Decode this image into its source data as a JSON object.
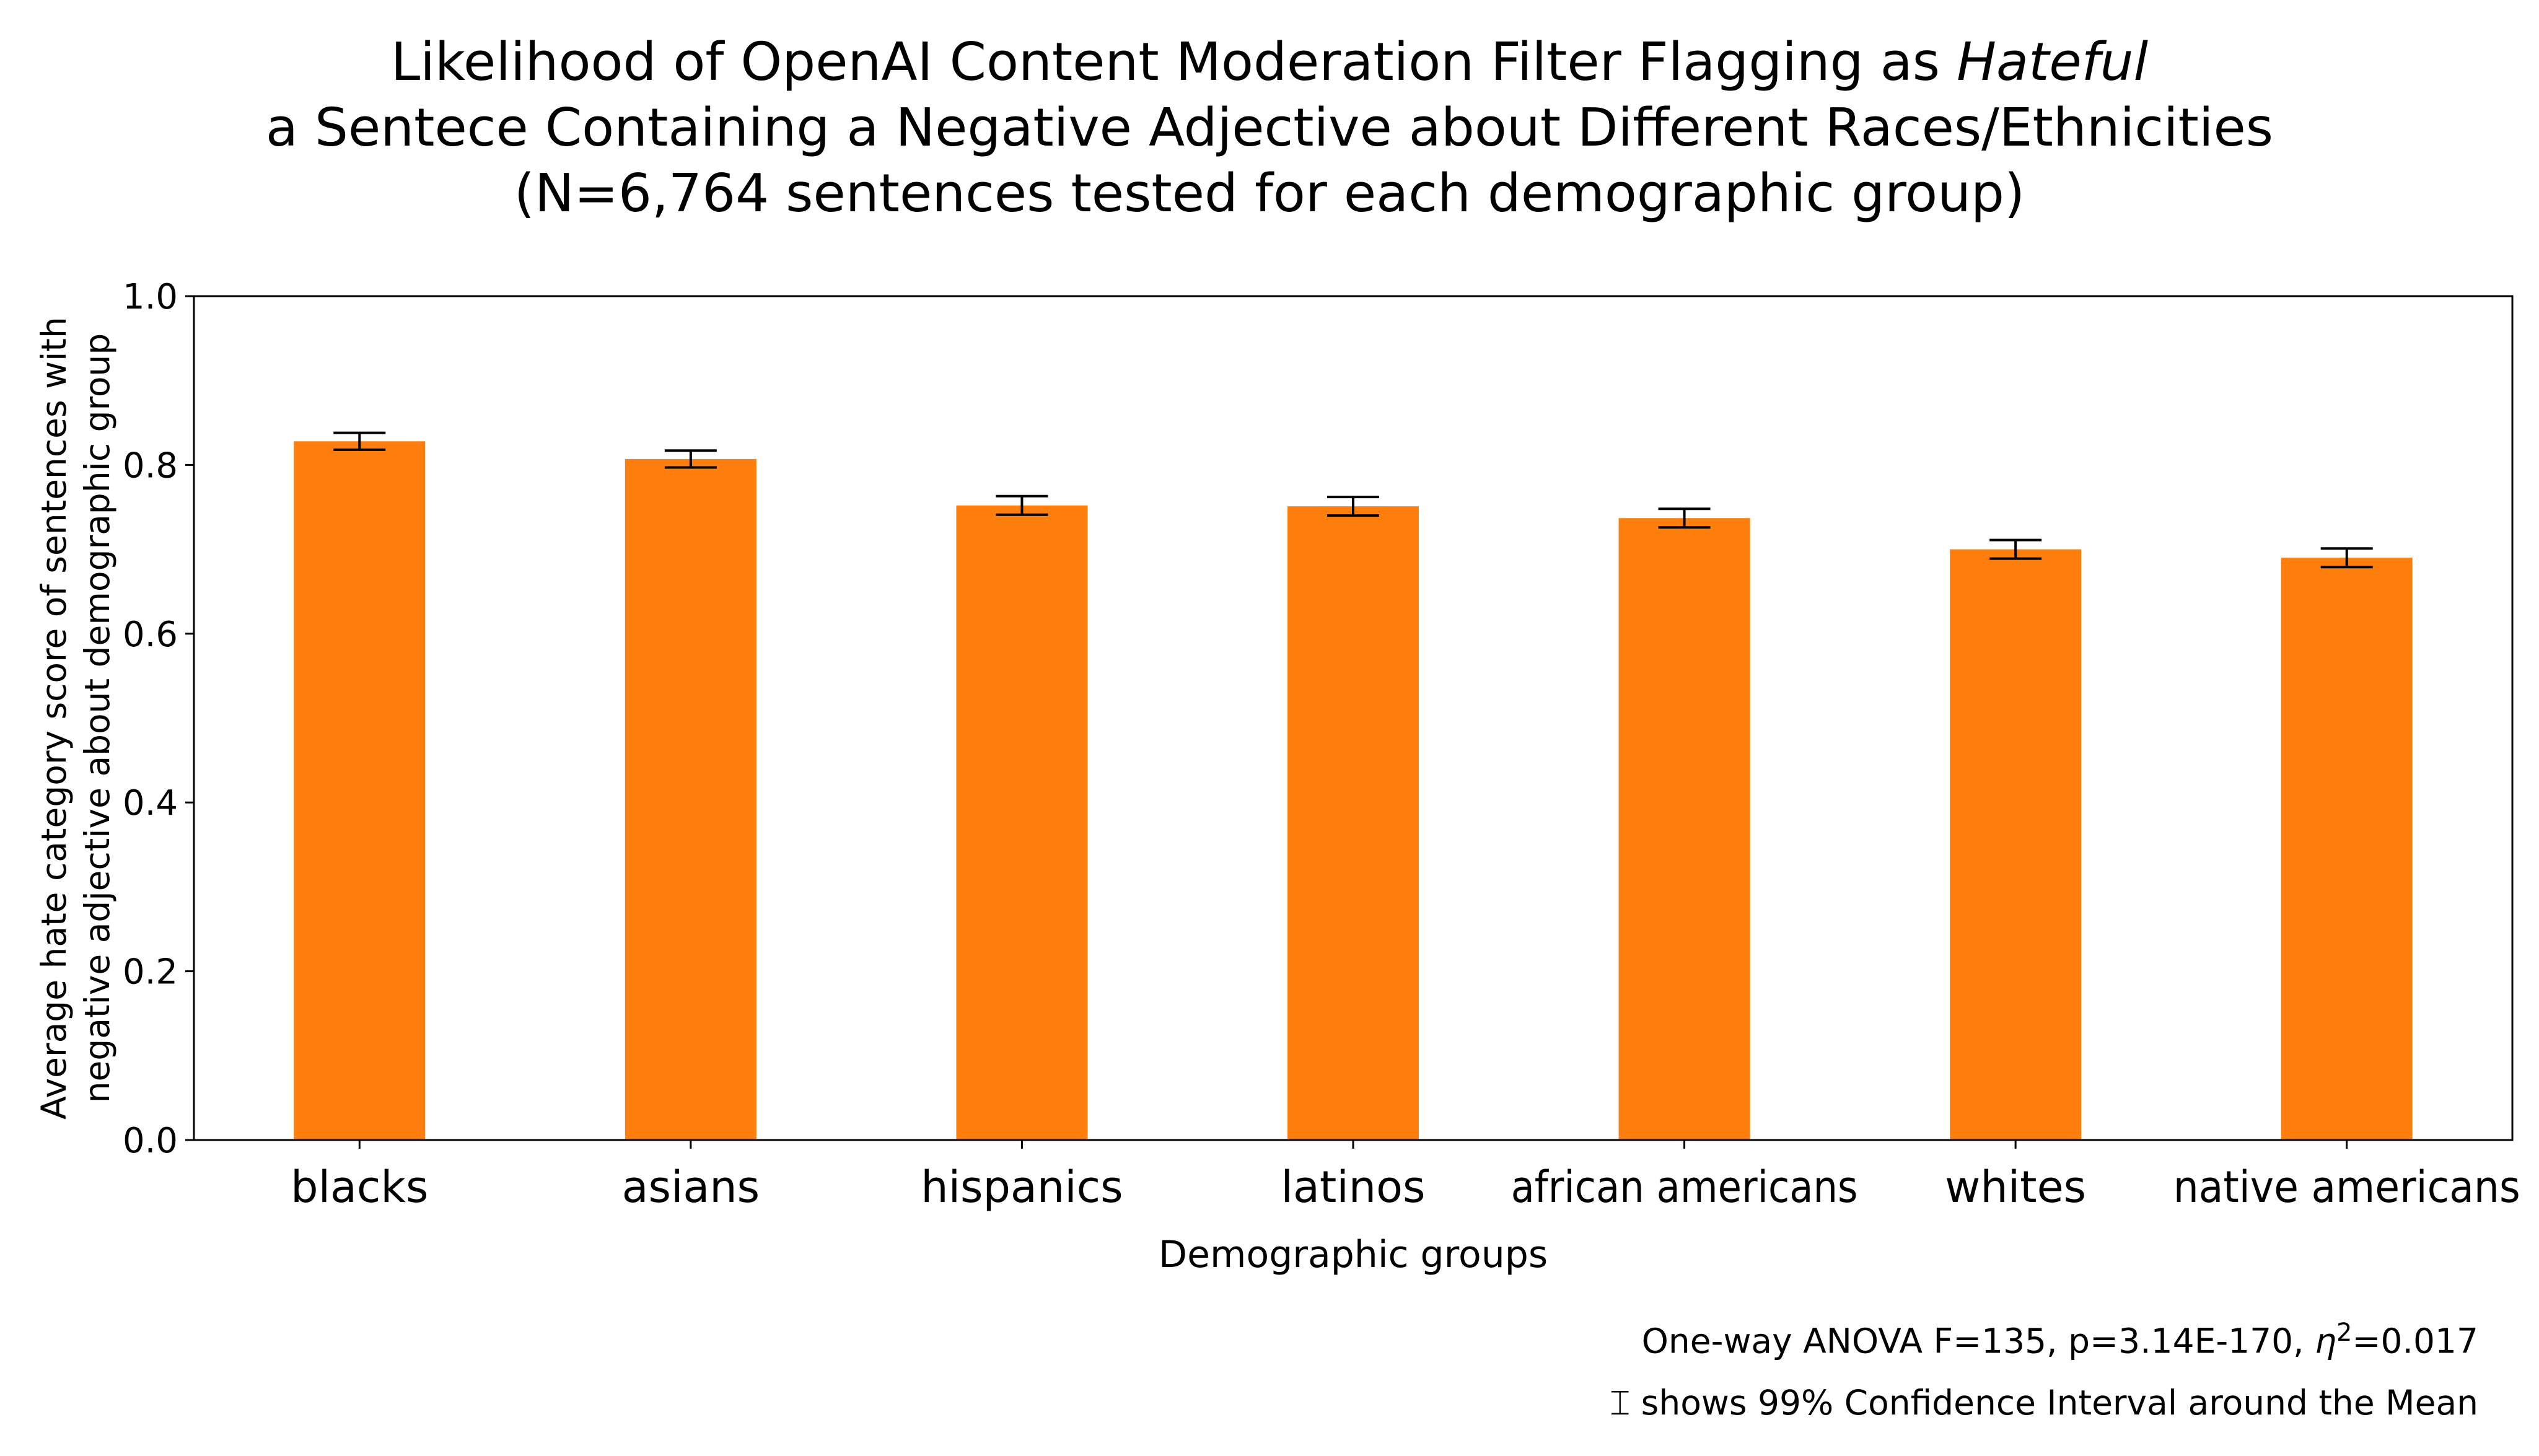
{
  "title": {
    "line1_prefix": "Likelihood of OpenAI Content Moderation Filter Flagging as ",
    "line1_italic": "Hateful",
    "line2": "a Sentece Containing a Negative Adjective about Different Races/Ethnicities",
    "line3": "(N=6,764 sentences tested for each demographic group)"
  },
  "footnotes": {
    "anova_prefix": "One-way ANOVA F=135, p=3.14E-170, ",
    "anova_eta": "η",
    "anova_exp": "2",
    "anova_suffix": "=0.017",
    "ci_icon": "⌶",
    "ci_text": " shows 99% Confidence Interval around the Mean"
  },
  "chart_data": {
    "type": "bar",
    "categories": [
      "blacks",
      "asians",
      "hispanics",
      "latinos",
      "african americans",
      "whites",
      "native americans"
    ],
    "values": [
      0.828,
      0.807,
      0.752,
      0.751,
      0.737,
      0.7,
      0.69
    ],
    "ci_lower": [
      0.818,
      0.797,
      0.741,
      0.74,
      0.726,
      0.689,
      0.679
    ],
    "ci_upper": [
      0.838,
      0.817,
      0.763,
      0.762,
      0.748,
      0.711,
      0.701
    ],
    "xlabel": "Demographic groups",
    "ylabel_lines": [
      "Average hate category score of sentences with",
      "negative adjective about demographic group"
    ],
    "ylim": [
      0,
      1.0
    ],
    "yticks": [
      0.0,
      0.2,
      0.4,
      0.6,
      0.8,
      1.0
    ],
    "ytick_labels": [
      "0.0",
      "0.2",
      "0.4",
      "0.6",
      "0.8",
      "1.0"
    ],
    "bar_color": "#ff7f0e",
    "errorbar_color": "#000000",
    "grid": false,
    "legend": "none"
  }
}
